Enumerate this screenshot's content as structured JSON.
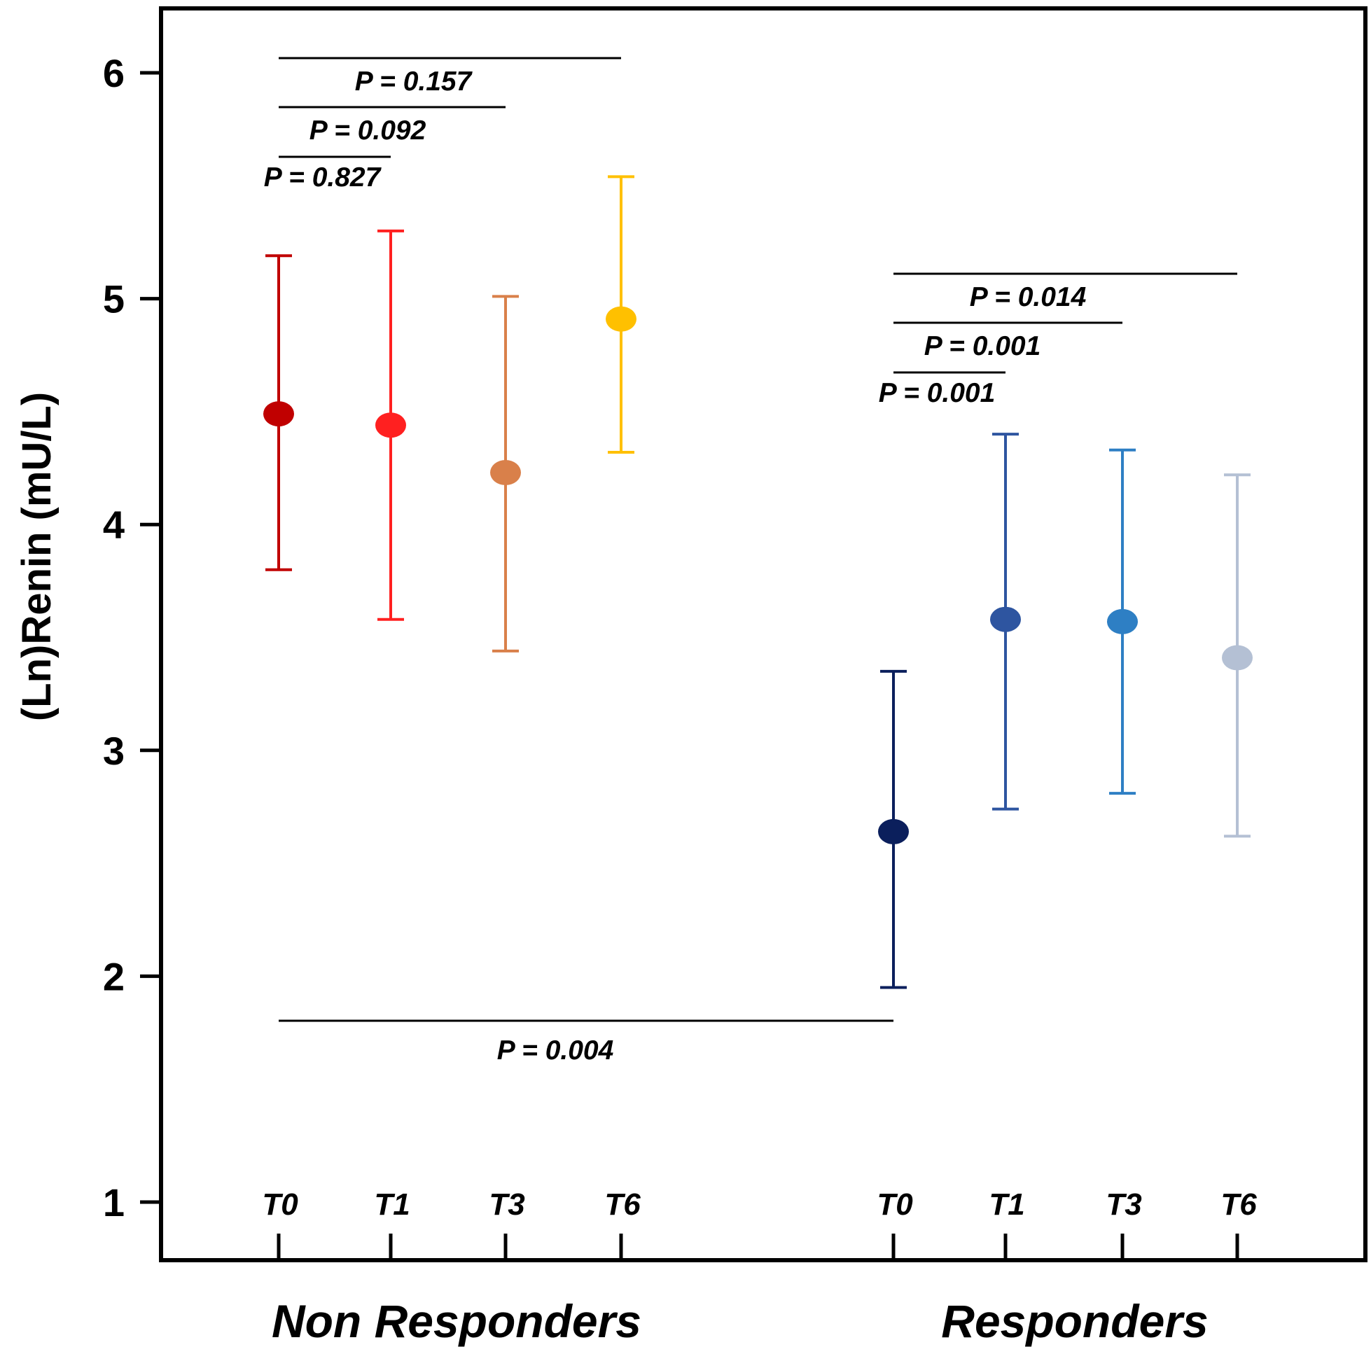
{
  "chart_data": {
    "type": "scatter",
    "ylabel": "(Ln)Renin (mU/L)",
    "ylim": [
      1,
      6
    ],
    "yticks": [
      1,
      2,
      3,
      4,
      5,
      6
    ],
    "grid": false,
    "groups": [
      {
        "label": "Non Responders",
        "points": [
          {
            "timepoint": "T0",
            "mean": 4.49,
            "lower": 3.8,
            "upper": 5.19,
            "color": "#c00000"
          },
          {
            "timepoint": "T1",
            "mean": 4.44,
            "lower": 3.58,
            "upper": 5.3,
            "color": "#ff2020"
          },
          {
            "timepoint": "T3",
            "mean": 4.23,
            "lower": 3.44,
            "upper": 5.01,
            "color": "#d9804a"
          },
          {
            "timepoint": "T6",
            "mean": 4.91,
            "lower": 4.32,
            "upper": 5.54,
            "color": "#ffc000"
          }
        ],
        "comparisons": [
          {
            "from": "T0",
            "to": "T1",
            "label": "P = 0.827"
          },
          {
            "from": "T0",
            "to": "T3",
            "label": "P = 0.092"
          },
          {
            "from": "T0",
            "to": "T6",
            "label": "P = 0.157"
          }
        ]
      },
      {
        "label": "Responders",
        "points": [
          {
            "timepoint": "T0",
            "mean": 2.64,
            "lower": 1.95,
            "upper": 3.35,
            "color": "#0b1f5c"
          },
          {
            "timepoint": "T1",
            "mean": 3.58,
            "lower": 2.74,
            "upper": 4.4,
            "color": "#2e55a0"
          },
          {
            "timepoint": "T3",
            "mean": 3.57,
            "lower": 2.81,
            "upper": 4.33,
            "color": "#2e7fc4"
          },
          {
            "timepoint": "T6",
            "mean": 3.41,
            "lower": 2.62,
            "upper": 4.22,
            "color": "#b4c0d4"
          }
        ],
        "comparisons": [
          {
            "from": "T0",
            "to": "T1",
            "label": "P = 0.001"
          },
          {
            "from": "T0",
            "to": "T3",
            "label": "P = 0.001"
          },
          {
            "from": "T0",
            "to": "T6",
            "label": "P = 0.014"
          }
        ]
      }
    ],
    "between_groups": {
      "label": "P = 0.004"
    }
  }
}
